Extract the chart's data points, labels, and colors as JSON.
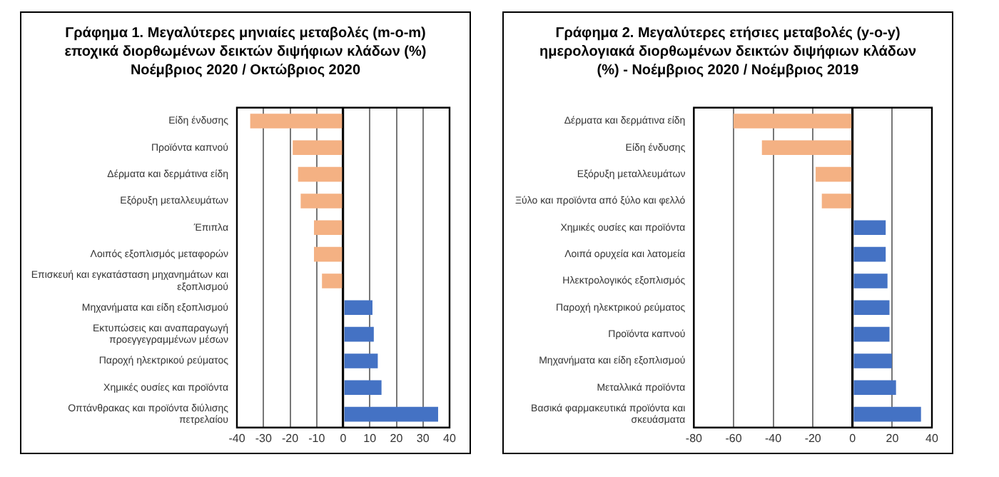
{
  "chart_data": [
    {
      "type": "bar",
      "orientation": "horizontal",
      "title": "Γράφημα 1. Μεγαλύτερες μηνιαίες μεταβολές (m-o-m) εποχικά διορθωμένων δεικτών διψήφιων κλάδων (%) Νοέμβριος 2020 / Οκτώβριος 2020",
      "categories": [
        "Είδη ένδυσης",
        "Προϊόντα καπνού",
        "Δέρματα και δερμάτινα είδη",
        "Εξόρυξη μεταλλευμάτων",
        "Έπιπλα",
        "Λοιπός εξοπλισμός μεταφορών",
        "Επισκευή και εγκατάσταση μηχανημάτων και εξοπλισμού",
        "Μηχανήματα και είδη εξοπλισμού",
        "Εκτυπώσεις και αναπαραγωγή προεγγεγραμμένων μέσων",
        "Παροχή ηλεκτρικού ρεύματος",
        "Χημικές ουσίες και προϊόντα",
        "Οπτάνθρακας και προϊόντα διύλισης πετρελαίου"
      ],
      "values": [
        -35,
        -19,
        -17,
        -16,
        -11,
        -11,
        -8,
        11,
        11.5,
        13,
        14.4,
        35.7
      ],
      "colors": [
        "#f4b183",
        "#f4b183",
        "#f4b183",
        "#f4b183",
        "#f4b183",
        "#f4b183",
        "#f4b183",
        "#4472c4",
        "#4472c4",
        "#4472c4",
        "#4472c4",
        "#4472c4"
      ],
      "xlim": [
        -40,
        40
      ],
      "xticks": [
        -40,
        -30,
        -20,
        -10,
        0,
        10,
        20,
        30,
        40
      ],
      "grid": "x",
      "legend": false
    },
    {
      "type": "bar",
      "orientation": "horizontal",
      "title": "Γράφημα 2. Μεγαλύτερες ετήσιες μεταβολές (y-o-y) ημερολογιακά διορθωμένων δεικτών διψήφιων κλάδων (%) - Νοέμβριος 2020 / Νοέμβριος 2019",
      "categories": [
        "Δέρματα και δερμάτινα είδη",
        "Είδη ένδυσης",
        "Εξόρυξη μεταλλευμάτων",
        "Ξύλο και προϊόντα από ξύλο και φελλό",
        "Χημικές ουσίες και προϊόντα",
        "Λοιπά ορυχεία και λατομεία",
        "Ηλεκτρολογικός εξοπλισμός",
        "Παροχή ηλεκτρικού ρεύματος",
        "Προϊόντα καπνού",
        "Μηχανήματα και είδη εξοπλισμού",
        "Μεταλλικά προϊόντα",
        "Βασικά φαρμακευτικά προϊόντα και σκευάσματα"
      ],
      "values": [
        -60,
        -45.7,
        -18.6,
        -15.5,
        16.7,
        16.7,
        17.6,
        18.6,
        18.6,
        19.8,
        21.9,
        34.5
      ],
      "colors": [
        "#f4b183",
        "#f4b183",
        "#f4b183",
        "#f4b183",
        "#4472c4",
        "#4472c4",
        "#4472c4",
        "#4472c4",
        "#4472c4",
        "#4472c4",
        "#4472c4",
        "#4472c4"
      ],
      "xlim": [
        -80,
        40
      ],
      "xticks": [
        -80,
        -60,
        -40,
        -20,
        0,
        20,
        40
      ],
      "grid": "x",
      "legend": false
    }
  ]
}
